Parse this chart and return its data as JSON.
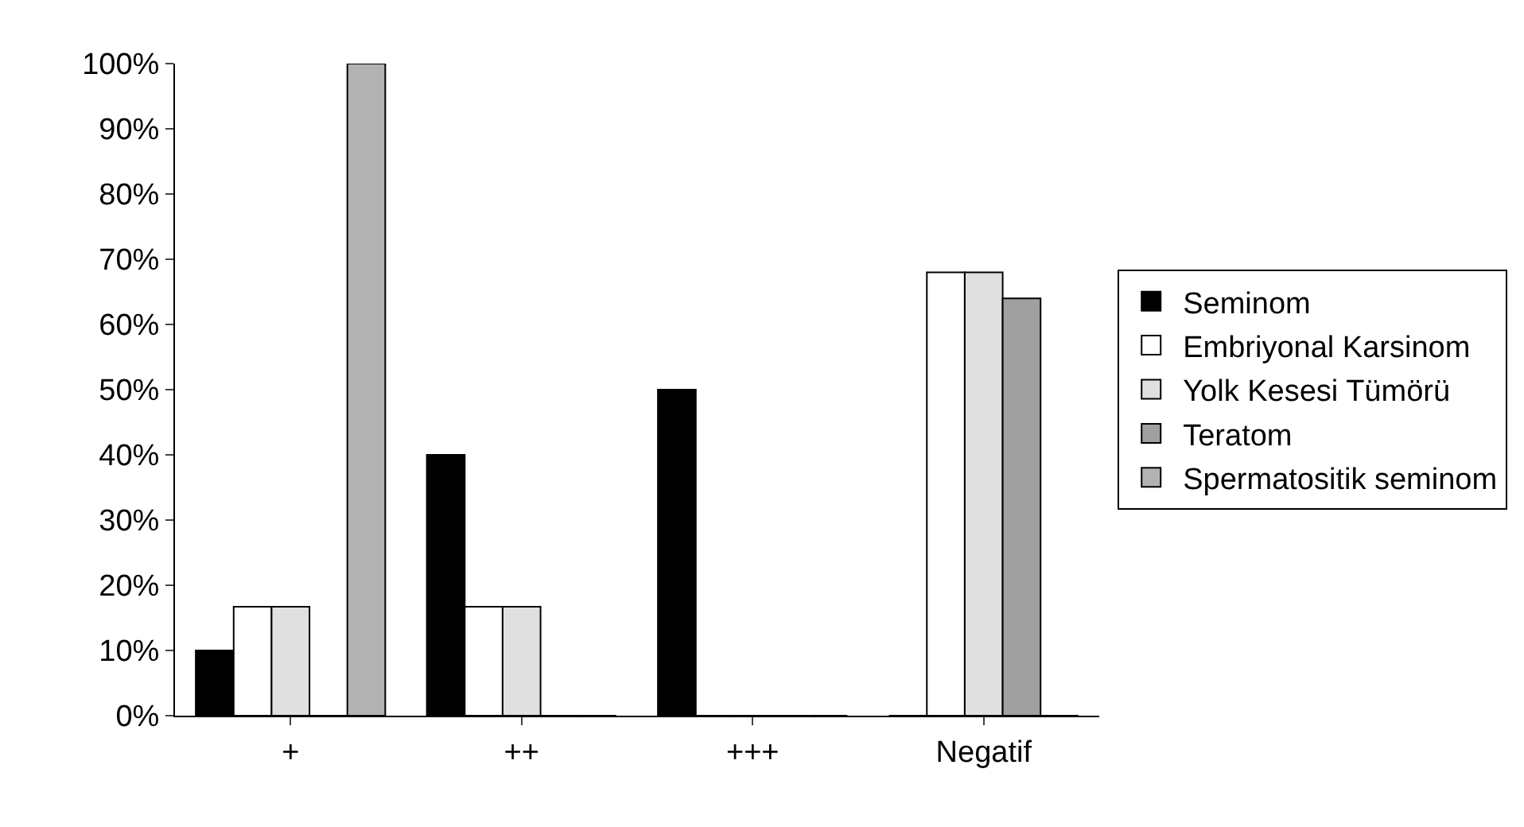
{
  "chart_data": {
    "type": "bar",
    "categories": [
      "+",
      "++",
      "+++",
      "Negatif"
    ],
    "series": [
      {
        "name": "Seminom",
        "color": "#000000",
        "values": [
          10,
          40,
          50,
          0
        ]
      },
      {
        "name": "Embriyonal Karsinom",
        "color": "#ffffff",
        "values": [
          16.7,
          16.7,
          0,
          68
        ]
      },
      {
        "name": "Yolk Kesesi Tümörü",
        "color": "#e0e0e0",
        "values": [
          16.7,
          16.7,
          0,
          68
        ]
      },
      {
        "name": "Teratom",
        "color": "#a0a0a0",
        "values": [
          0,
          0,
          0,
          64
        ]
      },
      {
        "name": "Spermatositik seminom",
        "color": "#b2b2b2",
        "values": [
          100,
          0,
          0,
          0
        ]
      }
    ],
    "ylim": [
      0,
      100
    ],
    "yticks": [
      {
        "value": 0,
        "label": "0%"
      },
      {
        "value": 10,
        "label": "10%"
      },
      {
        "value": 20,
        "label": "20%"
      },
      {
        "value": 30,
        "label": "30%"
      },
      {
        "value": 40,
        "label": "40%"
      },
      {
        "value": 50,
        "label": "50%"
      },
      {
        "value": 60,
        "label": "60%"
      },
      {
        "value": 70,
        "label": "70%"
      },
      {
        "value": 80,
        "label": "80%"
      },
      {
        "value": 90,
        "label": "90%"
      },
      {
        "value": 100,
        "label": "100%"
      }
    ],
    "grid": false,
    "legend": "right"
  }
}
